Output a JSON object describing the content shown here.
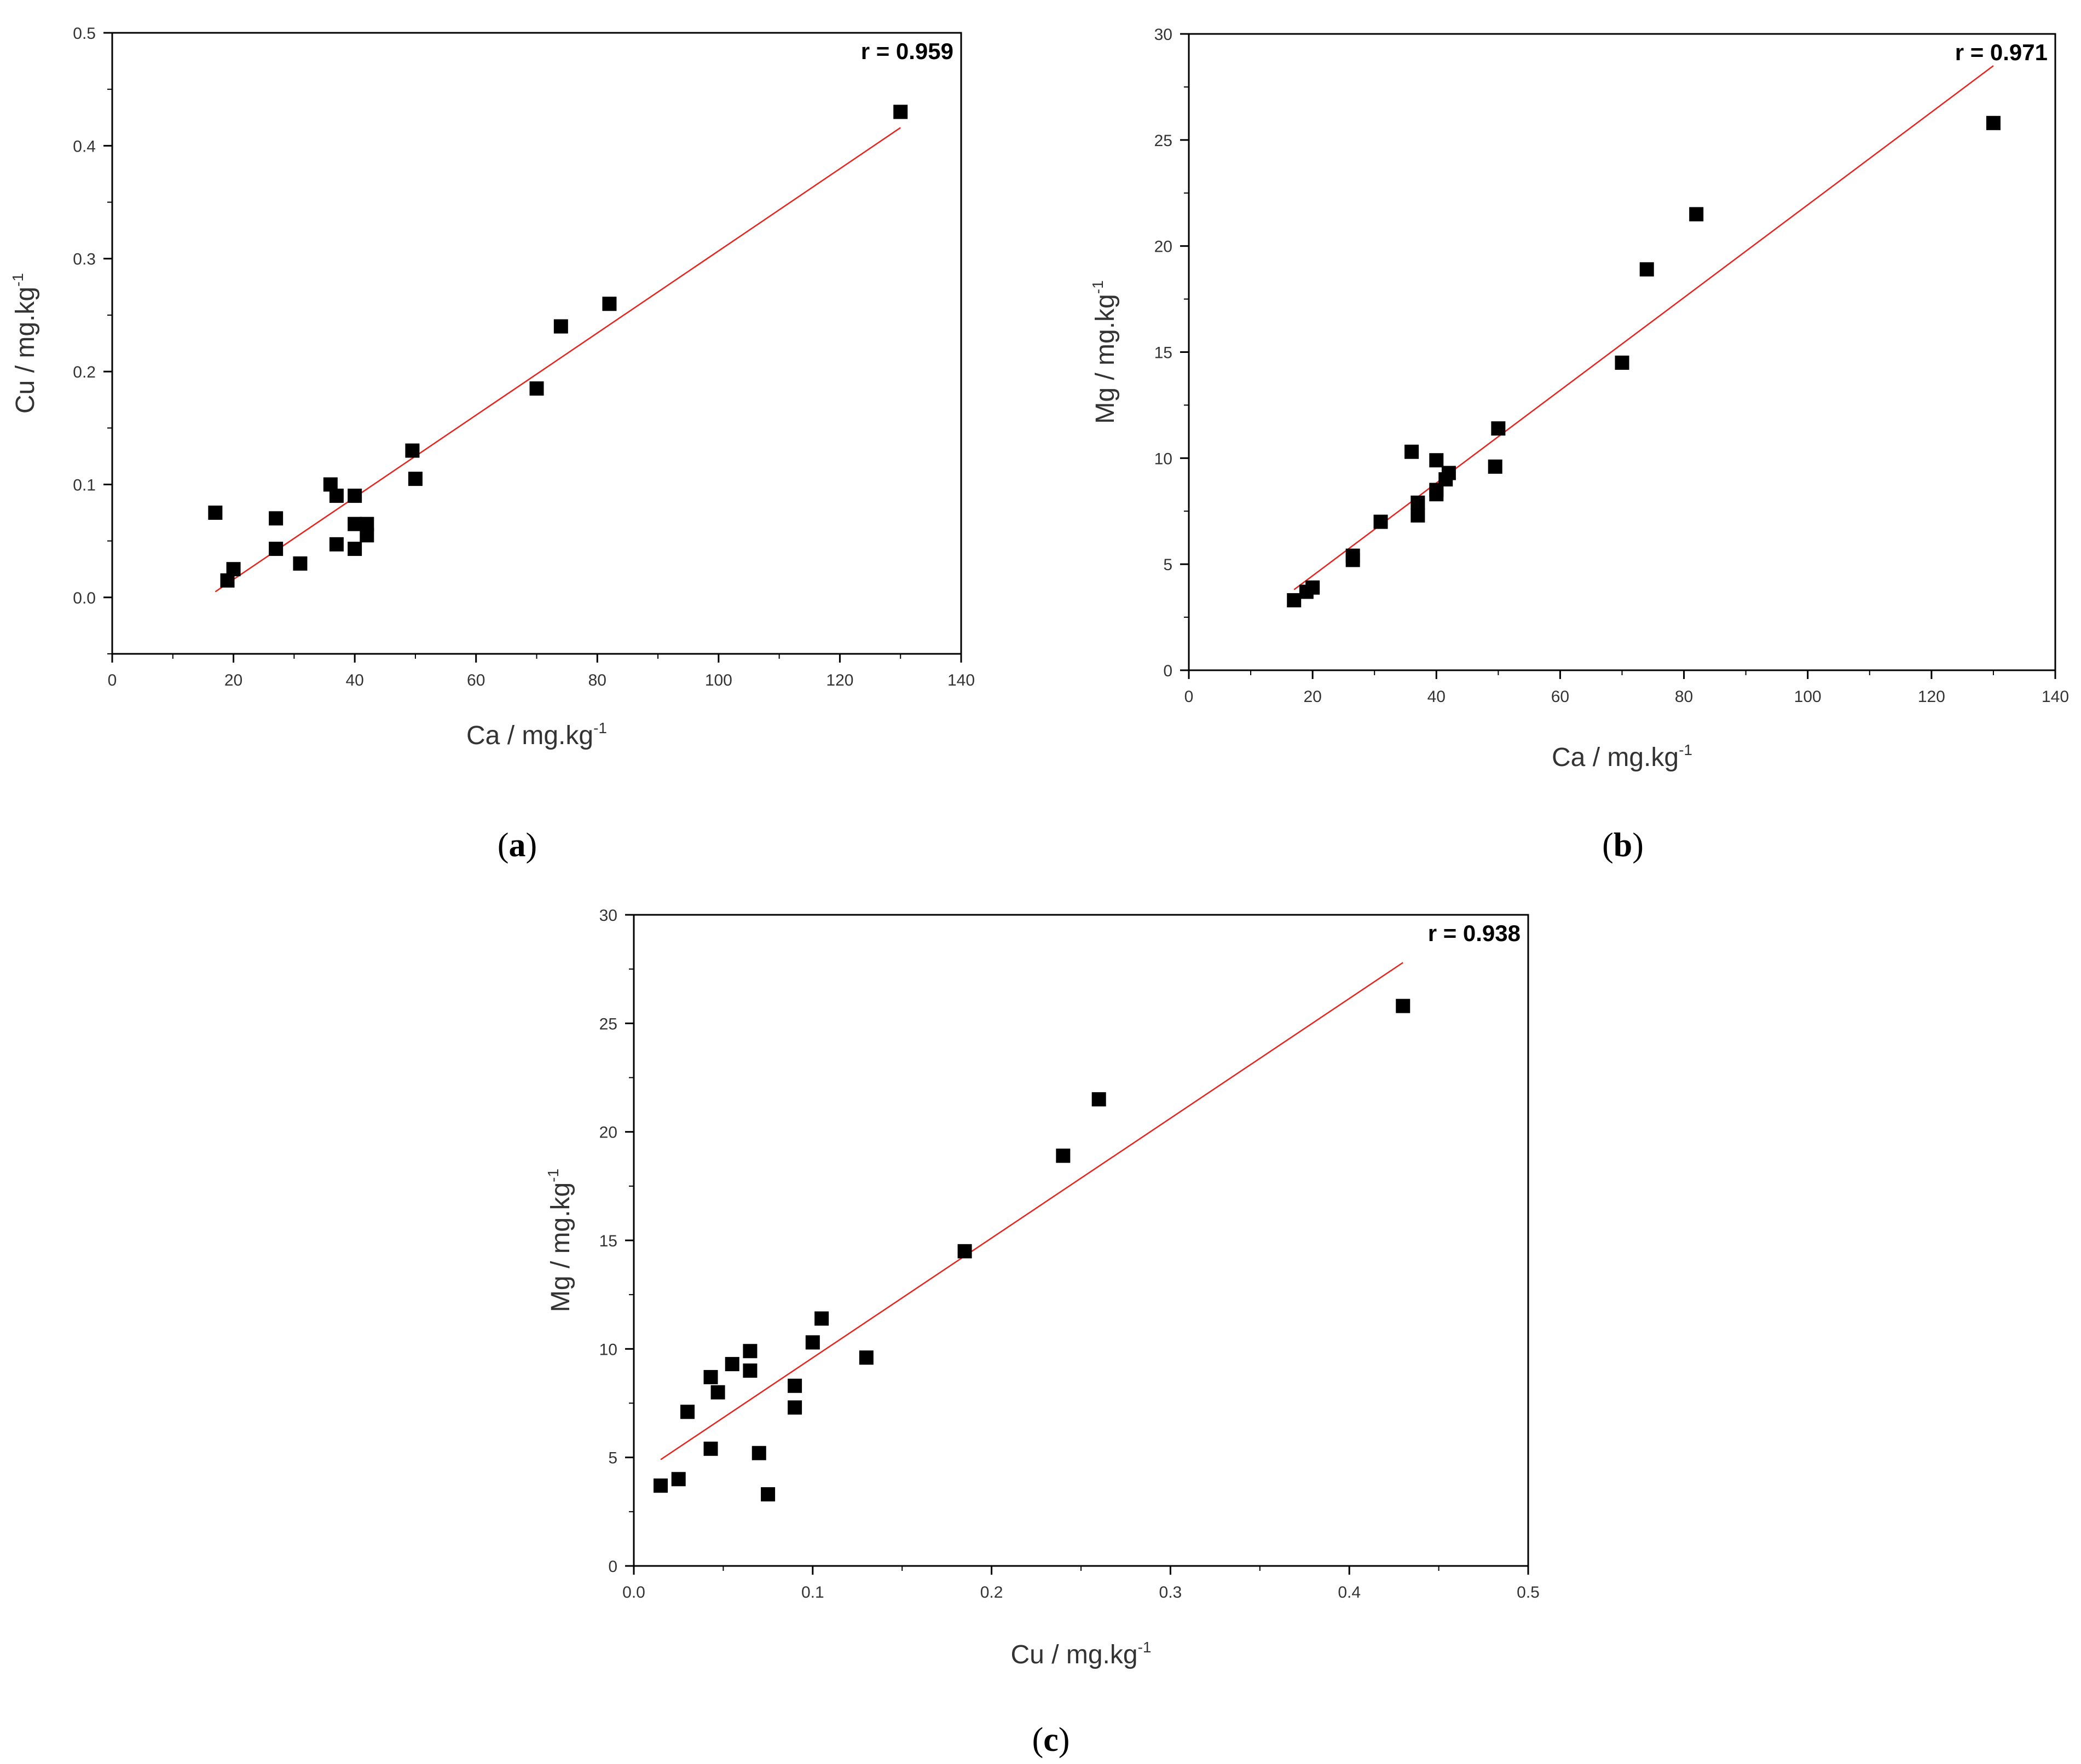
{
  "colors": {
    "axis": "#000000",
    "fit_line": "#e8231c",
    "marker": "#000000",
    "text": "#333333"
  },
  "chart_data": [
    {
      "type": "scatter",
      "panel_label": "a",
      "r_label": "r = 0.959",
      "xlabel": "Ca / mg.kg",
      "xlabel_sup": "-1",
      "ylabel": "Cu / mg.kg",
      "ylabel_sup": "-1",
      "xlim": [
        0,
        140
      ],
      "ylim": [
        -0.05,
        0.5
      ],
      "xticks": [
        0,
        20,
        40,
        60,
        80,
        100,
        120,
        140
      ],
      "yticks": [
        0.0,
        0.1,
        0.2,
        0.3,
        0.4,
        0.5
      ],
      "x_tick_labels": [
        "0",
        "20",
        "40",
        "60",
        "80",
        "100",
        "120",
        "140"
      ],
      "y_tick_labels": [
        "0.0",
        "0.1",
        "0.2",
        "0.3",
        "0.4",
        "0.5"
      ],
      "points": [
        [
          17,
          0.075
        ],
        [
          19,
          0.015
        ],
        [
          20,
          0.025
        ],
        [
          27,
          0.07
        ],
        [
          27,
          0.043
        ],
        [
          31,
          0.03
        ],
        [
          36,
          0.1
        ],
        [
          37,
          0.09
        ],
        [
          37,
          0.047
        ],
        [
          40,
          0.09
        ],
        [
          40,
          0.065
        ],
        [
          40,
          0.043
        ],
        [
          42,
          0.065
        ],
        [
          42,
          0.055
        ],
        [
          49.5,
          0.13
        ],
        [
          50,
          0.105
        ],
        [
          70,
          0.185
        ],
        [
          74,
          0.24
        ],
        [
          82,
          0.26
        ],
        [
          130,
          0.43
        ]
      ],
      "fit_line": [
        [
          17,
          0.005
        ],
        [
          130,
          0.416
        ]
      ]
    },
    {
      "type": "scatter",
      "panel_label": "b",
      "r_label": "r = 0.971",
      "xlabel": "Ca / mg.kg",
      "xlabel_sup": "-1",
      "ylabel": "Mg / mg.kg",
      "ylabel_sup": "-1",
      "xlim": [
        0,
        140
      ],
      "ylim": [
        0,
        30
      ],
      "xticks": [
        0,
        20,
        40,
        60,
        80,
        100,
        120,
        140
      ],
      "yticks": [
        0,
        5,
        10,
        15,
        20,
        25,
        30
      ],
      "x_tick_labels": [
        "0",
        "20",
        "40",
        "60",
        "80",
        "100",
        "120",
        "140"
      ],
      "y_tick_labels": [
        "0",
        "5",
        "10",
        "15",
        "20",
        "25",
        "30"
      ],
      "points": [
        [
          17,
          3.3
        ],
        [
          19,
          3.7
        ],
        [
          20,
          3.9
        ],
        [
          26.5,
          5.4
        ],
        [
          26.5,
          5.2
        ],
        [
          31,
          7.0
        ],
        [
          36,
          10.3
        ],
        [
          37,
          7.9
        ],
        [
          37,
          7.3
        ],
        [
          40,
          9.9
        ],
        [
          40,
          8.5
        ],
        [
          40,
          8.3
        ],
        [
          41.5,
          9.0
        ],
        [
          42,
          9.3
        ],
        [
          49.5,
          9.6
        ],
        [
          50,
          11.4
        ],
        [
          70,
          14.5
        ],
        [
          74,
          18.9
        ],
        [
          82,
          21.5
        ],
        [
          130,
          25.8
        ]
      ],
      "fit_line": [
        [
          17,
          3.8
        ],
        [
          130,
          28.5
        ]
      ]
    },
    {
      "type": "scatter",
      "panel_label": "c",
      "r_label": "r = 0.938",
      "xlabel": "Cu / mg.kg",
      "xlabel_sup": "-1",
      "ylabel": "Mg / mg.kg",
      "ylabel_sup": "-1",
      "xlim": [
        0,
        0.5
      ],
      "ylim": [
        0,
        30
      ],
      "xticks": [
        0.0,
        0.1,
        0.2,
        0.3,
        0.4,
        0.5
      ],
      "yticks": [
        0,
        5,
        10,
        15,
        20,
        25,
        30
      ],
      "x_tick_labels": [
        "0.0",
        "0.1",
        "0.2",
        "0.3",
        "0.4",
        "0.5"
      ],
      "y_tick_labels": [
        "0",
        "5",
        "10",
        "15",
        "20",
        "25",
        "30"
      ],
      "points": [
        [
          0.015,
          3.7
        ],
        [
          0.025,
          4.0
        ],
        [
          0.03,
          7.1
        ],
        [
          0.043,
          5.4
        ],
        [
          0.043,
          8.7
        ],
        [
          0.047,
          8.0
        ],
        [
          0.055,
          9.3
        ],
        [
          0.065,
          9.9
        ],
        [
          0.065,
          9.0
        ],
        [
          0.07,
          5.2
        ],
        [
          0.075,
          3.3
        ],
        [
          0.09,
          7.3
        ],
        [
          0.09,
          8.3
        ],
        [
          0.1,
          10.3
        ],
        [
          0.105,
          11.4
        ],
        [
          0.13,
          9.6
        ],
        [
          0.185,
          14.5
        ],
        [
          0.24,
          18.9
        ],
        [
          0.26,
          21.5
        ],
        [
          0.43,
          25.8
        ]
      ],
      "fit_line": [
        [
          0.015,
          4.9
        ],
        [
          0.43,
          27.8
        ]
      ]
    }
  ]
}
